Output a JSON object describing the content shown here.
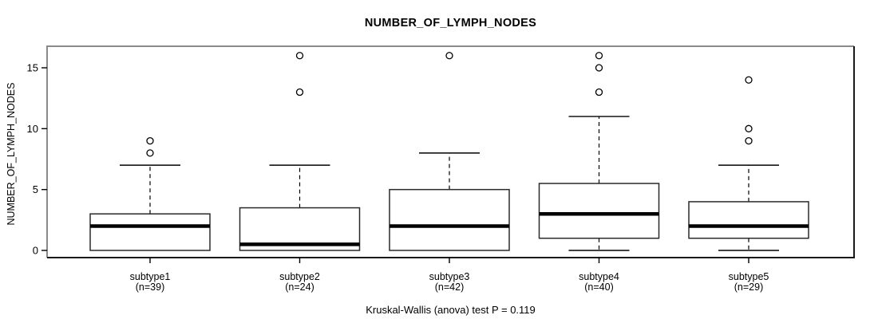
{
  "chart_data": {
    "type": "boxplot",
    "title": "NUMBER_OF_LYMPH_NODES",
    "ylabel": "NUMBER_OF_LYMPH_NODES",
    "caption": "Kruskal-Wallis (anova) test P = 0.119",
    "yticks": [
      0,
      5,
      10,
      15
    ],
    "ylim": [
      -0.6,
      16.8
    ],
    "grid": false,
    "legend": "none",
    "groups": [
      {
        "label": "subtype1",
        "n": 39,
        "n_label": "(n=39)",
        "whisker_low": 0,
        "q1": 0,
        "median": 2,
        "q3": 3,
        "whisker_high": 7,
        "outliers": [
          8,
          9
        ]
      },
      {
        "label": "subtype2",
        "n": 24,
        "n_label": "(n=24)",
        "whisker_low": 0,
        "q1": 0,
        "median": 0.5,
        "q3": 3.5,
        "whisker_high": 7,
        "outliers": [
          13,
          16
        ]
      },
      {
        "label": "subtype3",
        "n": 42,
        "n_label": "(n=42)",
        "whisker_low": 0,
        "q1": 0,
        "median": 2,
        "q3": 5,
        "whisker_high": 8,
        "outliers": [
          16
        ]
      },
      {
        "label": "subtype4",
        "n": 40,
        "n_label": "(n=40)",
        "whisker_low": 0,
        "q1": 1,
        "median": 3,
        "q3": 5.5,
        "whisker_high": 11,
        "outliers": [
          13,
          15,
          16
        ]
      },
      {
        "label": "subtype5",
        "n": 29,
        "n_label": "(n=29)",
        "whisker_low": 0,
        "q1": 1,
        "median": 2,
        "q3": 4,
        "whisker_high": 7,
        "outliers": [
          9,
          10,
          14
        ]
      }
    ],
    "colors": {
      "line": "#000000",
      "frame_light": "#8a8a8a",
      "frame_dark": "#1a1a1a",
      "box_fill": "#ffffff",
      "background": "#ffffff"
    }
  }
}
